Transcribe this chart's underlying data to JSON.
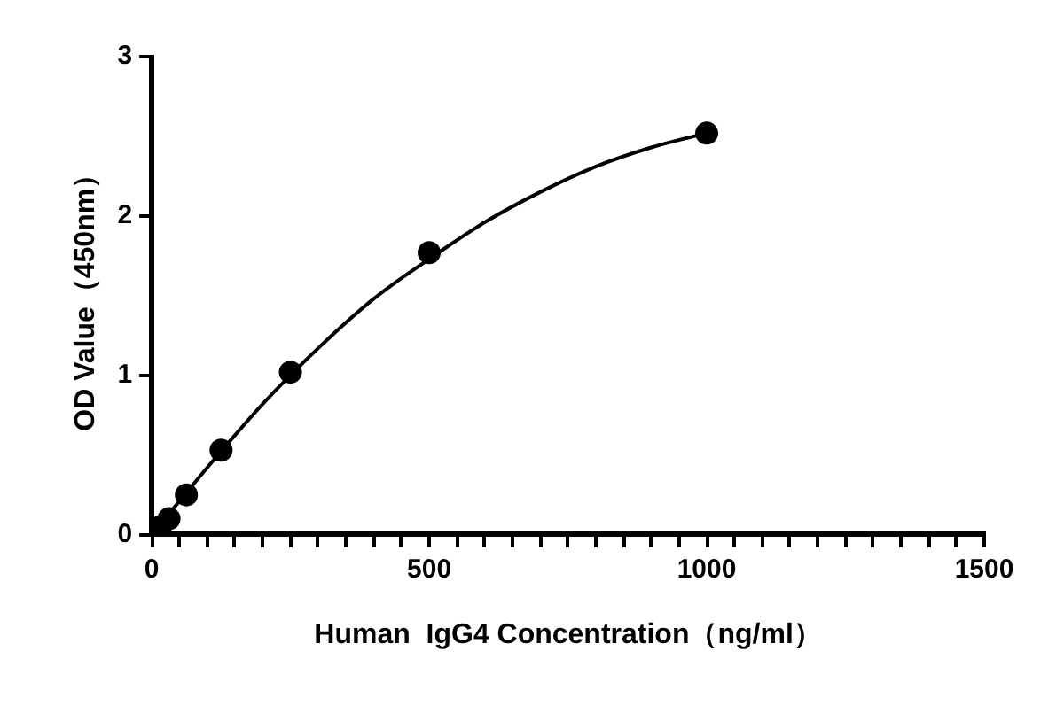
{
  "chart_data": {
    "type": "scatter",
    "xlabel": "Human  IgG4 Concentration（ng/ml）",
    "ylabel": "OD Value（450nm）",
    "xlim": [
      0,
      1500
    ],
    "ylim": [
      0,
      3
    ],
    "xticks": [
      0,
      {
        "value": 50,
        "label": null
      },
      {
        "value": 100,
        "label": null
      },
      {
        "value": 150,
        "label": null
      },
      {
        "value": 200,
        "label": null
      },
      {
        "value": 250,
        "label": null
      },
      {
        "value": 300,
        "label": null
      },
      {
        "value": 350,
        "label": null
      },
      {
        "value": 400,
        "label": null
      },
      {
        "value": 450,
        "label": null
      },
      500,
      {
        "value": 550,
        "label": null
      },
      {
        "value": 600,
        "label": null
      },
      {
        "value": 650,
        "label": null
      },
      {
        "value": 700,
        "label": null
      },
      {
        "value": 750,
        "label": null
      },
      {
        "value": 800,
        "label": null
      },
      {
        "value": 850,
        "label": null
      },
      {
        "value": 900,
        "label": null
      },
      {
        "value": 950,
        "label": null
      },
      1000,
      {
        "value": 1050,
        "label": null
      },
      {
        "value": 1100,
        "label": null
      },
      {
        "value": 1150,
        "label": null
      },
      {
        "value": 1200,
        "label": null
      },
      {
        "value": 1250,
        "label": null
      },
      {
        "value": 1300,
        "label": null
      },
      {
        "value": 1350,
        "label": null
      },
      {
        "value": 1400,
        "label": null
      },
      {
        "value": 1450,
        "label": null
      },
      1500
    ],
    "yticks": [
      0,
      1,
      2,
      3
    ],
    "grid": false,
    "legend": false,
    "marker": "circle",
    "series": [
      {
        "type": "scatter",
        "color": "#000000",
        "x": [
          15.6,
          31.25,
          62.5,
          125,
          250,
          500,
          1000
        ],
        "values": [
          0.05,
          0.1,
          0.25,
          0.53,
          1.02,
          1.77,
          2.52
        ]
      },
      {
        "type": "line",
        "color": "#000000",
        "marker": "none",
        "line_style": "solid",
        "x": [
          0,
          50,
          100,
          200,
          300,
          400,
          500,
          600,
          700,
          800,
          900,
          1000
        ],
        "values": [
          0,
          0.21,
          0.42,
          0.82,
          1.17,
          1.48,
          1.73,
          1.96,
          2.15,
          2.31,
          2.43,
          2.52
        ]
      }
    ]
  }
}
